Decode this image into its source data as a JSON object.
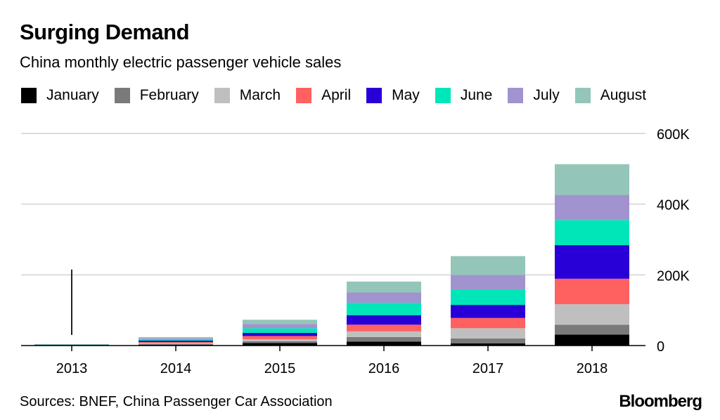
{
  "header": {
    "title": "Surging Demand",
    "subtitle": "China monthly electric passenger vehicle sales"
  },
  "footer": {
    "source": "Sources: BNEF, China Passenger Car Association",
    "brand": "Bloomberg"
  },
  "chart_data": {
    "type": "bar",
    "stacked": true,
    "title": "Surging Demand",
    "subtitle": "China monthly electric passenger vehicle sales",
    "xlabel": "",
    "ylabel": "",
    "categories": [
      "2013",
      "2014",
      "2015",
      "2016",
      "2017",
      "2018"
    ],
    "ylim": [
      0,
      600000
    ],
    "yticks": [
      0,
      200000,
      400000,
      600000
    ],
    "ytick_labels": [
      "0",
      "200K",
      "400K",
      "600K"
    ],
    "y_axis_side": "right",
    "grid": true,
    "legend_position": "top",
    "series": [
      {
        "name": "January",
        "color": "#000000",
        "values": [
          500,
          2000,
          7000,
          11000,
          6000,
          31000
        ]
      },
      {
        "name": "February",
        "color": "#7a7a7a",
        "values": [
          300,
          2000,
          5000,
          13000,
          14000,
          28000
        ]
      },
      {
        "name": "March",
        "color": "#bfbfbf",
        "values": [
          500,
          3000,
          6000,
          16000,
          29000,
          58000
        ]
      },
      {
        "name": "April",
        "color": "#ff6161",
        "values": [
          500,
          3000,
          9000,
          19000,
          29000,
          72000
        ]
      },
      {
        "name": "May",
        "color": "#2800d7",
        "values": [
          500,
          4000,
          9000,
          27000,
          37000,
          95000
        ]
      },
      {
        "name": "June",
        "color": "#00e6b8",
        "values": [
          500,
          3000,
          13000,
          35000,
          44000,
          71000
        ]
      },
      {
        "name": "July",
        "color": "#a193cf",
        "values": [
          700,
          3000,
          12000,
          29000,
          41000,
          71000
        ]
      },
      {
        "name": "August",
        "color": "#93c6b8",
        "values": [
          500,
          4000,
          12000,
          31000,
          53000,
          87000
        ]
      }
    ],
    "annotations": [
      {
        "type": "vertical-line",
        "category": "2013",
        "from_value": 30000,
        "to_value": 215000
      }
    ]
  }
}
